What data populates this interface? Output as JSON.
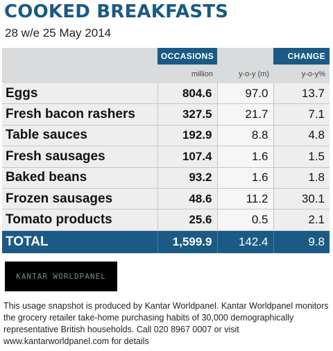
{
  "header": {
    "title": "COOKED BREAKFASTS",
    "subtitle": "28 w/e 25 May 2014"
  },
  "table": {
    "group_headers": {
      "occasions": "OCCASIONS",
      "change": "CHANGE"
    },
    "sub_headers": {
      "occasions": "million",
      "change_abs": "y-o-y (m)",
      "change_pct": "y-o-y%"
    },
    "rows": [
      {
        "label": "Eggs",
        "occasions": "804.6",
        "yoy_m": "97.0",
        "yoy_pct": "13.7"
      },
      {
        "label": "Fresh bacon rashers",
        "occasions": "327.5",
        "yoy_m": "21.7",
        "yoy_pct": "7.1"
      },
      {
        "label": "Table sauces",
        "occasions": "192.9",
        "yoy_m": "8.8",
        "yoy_pct": "4.8"
      },
      {
        "label": "Fresh sausages",
        "occasions": "107.4",
        "yoy_m": "1.6",
        "yoy_pct": "1.5"
      },
      {
        "label": "Baked beans",
        "occasions": "93.2",
        "yoy_m": "1.6",
        "yoy_pct": "1.8"
      },
      {
        "label": "Frozen sausages",
        "occasions": "48.6",
        "yoy_m": "11.2",
        "yoy_pct": "30.1"
      },
      {
        "label": "Tomato products",
        "occasions": "25.6",
        "yoy_m": "0.5",
        "yoy_pct": "2.1"
      }
    ],
    "total": {
      "label": "TOTAL",
      "occasions": "1,599.9",
      "yoy_m": "142.4",
      "yoy_pct": "9.8"
    }
  },
  "logo": {
    "text": "KANTAR WORLDPANEL"
  },
  "footer": {
    "text": "This usage snapshot is produced by Kantar Worldpanel. Kantar Worldpanel monitors the grocery retailer take-home purchasing habits of 30,000 demographically representative British households. Call 020 8967 0007 or visit www.kantarworldpanel.com for details"
  },
  "colors": {
    "brand_blue": "#1a5a84",
    "header_grey": "#d9dbdc",
    "row_grey": "#eeeeee"
  },
  "chart_data": {
    "type": "table",
    "title": "COOKED BREAKFASTS",
    "subtitle": "28 w/e 25 May 2014",
    "columns": [
      "",
      "OCCASIONS million",
      "CHANGE y-o-y (m)",
      "CHANGE y-o-y%"
    ],
    "categories": [
      "Eggs",
      "Fresh bacon rashers",
      "Table sauces",
      "Fresh sausages",
      "Baked beans",
      "Frozen sausages",
      "Tomato products",
      "TOTAL"
    ],
    "series": [
      {
        "name": "million",
        "values": [
          804.6,
          327.5,
          192.9,
          107.4,
          93.2,
          48.6,
          25.6,
          1599.9
        ]
      },
      {
        "name": "y-o-y (m)",
        "values": [
          97.0,
          21.7,
          8.8,
          1.6,
          1.6,
          11.2,
          0.5,
          142.4
        ]
      },
      {
        "name": "y-o-y%",
        "values": [
          13.7,
          7.1,
          4.8,
          1.5,
          1.8,
          30.1,
          2.1,
          9.8
        ]
      }
    ]
  }
}
